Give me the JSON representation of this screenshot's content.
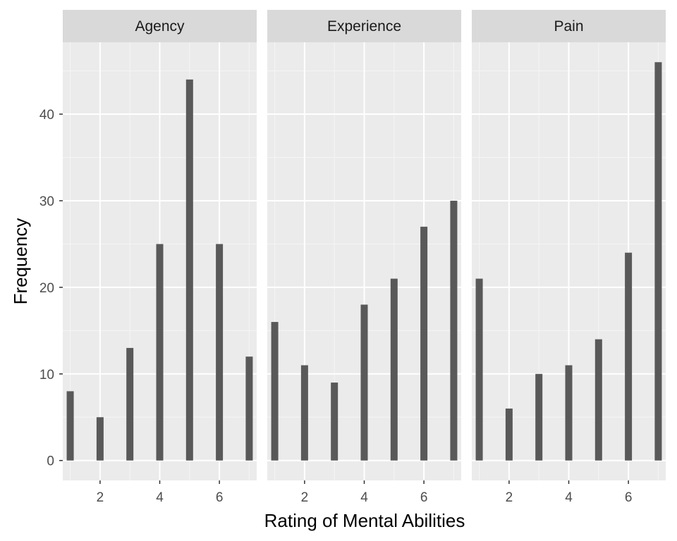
{
  "chart_data": {
    "type": "bar",
    "xlabel": "Rating of Mental Abilities",
    "ylabel": "Frequency",
    "x": [
      1,
      2,
      3,
      4,
      5,
      6,
      7
    ],
    "xticks": [
      2,
      4,
      6
    ],
    "yticks": [
      0,
      10,
      20,
      30,
      40
    ],
    "xlim": [
      0.75,
      7.25
    ],
    "ylim": [
      -2.3,
      48.3
    ],
    "grid": true,
    "legend": "none",
    "facets": [
      {
        "label": "Agency",
        "values": [
          8,
          5,
          13,
          25,
          44,
          25,
          12
        ]
      },
      {
        "label": "Experience",
        "values": [
          16,
          11,
          9,
          18,
          21,
          27,
          30
        ]
      },
      {
        "label": "Pain",
        "values": [
          21,
          6,
          10,
          11,
          14,
          24,
          46
        ]
      }
    ]
  },
  "colors": {
    "bar": "#595959",
    "panel": "#ebebeb",
    "strip": "#d9d9d9",
    "grid_major": "#ffffff",
    "grid_minor": "#f5f5f5",
    "tick": "#333333"
  }
}
